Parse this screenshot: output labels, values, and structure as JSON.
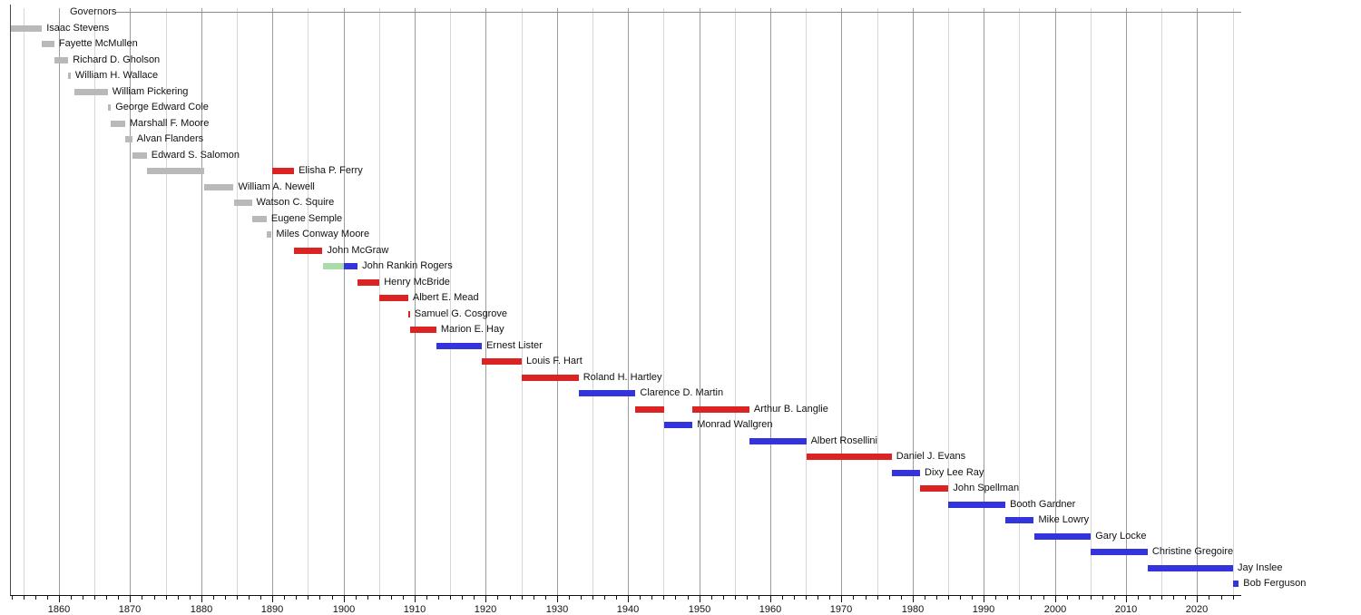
{
  "chart_data": {
    "type": "timeline",
    "title": "Governors",
    "x_axis": {
      "start": 1853.1,
      "end": 2026.3,
      "tick_labels": [
        "1860",
        "1870",
        "1880",
        "1890",
        "1900",
        "1910",
        "1920",
        "1930",
        "1940",
        "1950",
        "1960",
        "1970",
        "1980",
        "1990",
        "2000",
        "2010",
        "2020"
      ],
      "tick_years": [
        1860,
        1870,
        1880,
        1890,
        1900,
        1910,
        1920,
        1930,
        1940,
        1950,
        1960,
        1970,
        1980,
        1990,
        2000,
        2010,
        2020
      ],
      "minor_tick_interval_years": 1.6667,
      "gridline_interval_years": 5,
      "grid": "on"
    },
    "colors": {
      "gray": "#b9b9b9",
      "red": "#dc2323",
      "blue": "#3434dd",
      "green": "#aadcaa",
      "grid_minor": "#d6d6d6",
      "grid_major": "#9c9c9c",
      "axis": "#111111"
    },
    "governors": [
      {
        "name": "Isaac Stevens",
        "terms": [
          {
            "start": 1853.2,
            "end": 1857.6,
            "color": "gray"
          }
        ]
      },
      {
        "name": "Fayette McMullen",
        "terms": [
          {
            "start": 1857.6,
            "end": 1859.35,
            "color": "gray"
          }
        ]
      },
      {
        "name": "Richard D. Gholson",
        "terms": [
          {
            "start": 1859.35,
            "end": 1861.3,
            "color": "gray"
          }
        ]
      },
      {
        "name": "William H. Wallace",
        "terms": [
          {
            "start": 1861.3,
            "end": 1861.65,
            "color": "gray"
          }
        ]
      },
      {
        "name": "William Pickering",
        "terms": [
          {
            "start": 1862.1,
            "end": 1866.85,
            "color": "gray"
          }
        ]
      },
      {
        "name": "George Edward Cole",
        "terms": [
          {
            "start": 1866.85,
            "end": 1867.3,
            "color": "gray"
          }
        ]
      },
      {
        "name": "Marshall F. Moore",
        "terms": [
          {
            "start": 1867.3,
            "end": 1869.3,
            "color": "gray"
          }
        ]
      },
      {
        "name": "Alvan Flanders",
        "terms": [
          {
            "start": 1869.3,
            "end": 1870.3,
            "color": "gray"
          }
        ]
      },
      {
        "name": "Edward S. Salomon",
        "terms": [
          {
            "start": 1870.3,
            "end": 1872.35,
            "color": "gray"
          }
        ]
      },
      {
        "name": "Elisha P. Ferry",
        "terms": [
          {
            "start": 1872.35,
            "end": 1880.45,
            "color": "gray"
          },
          {
            "start": 1889.95,
            "end": 1893.05,
            "color": "red"
          }
        ]
      },
      {
        "name": "William A. Newell",
        "terms": [
          {
            "start": 1880.45,
            "end": 1884.55,
            "color": "gray"
          }
        ]
      },
      {
        "name": "Watson C. Squire",
        "terms": [
          {
            "start": 1884.55,
            "end": 1887.1,
            "color": "gray"
          }
        ]
      },
      {
        "name": "Eugene Semple",
        "terms": [
          {
            "start": 1887.1,
            "end": 1889.2,
            "color": "gray"
          }
        ]
      },
      {
        "name": "Miles Conway Moore",
        "terms": [
          {
            "start": 1889.2,
            "end": 1889.9,
            "color": "gray"
          }
        ]
      },
      {
        "name": "John McGraw",
        "terms": [
          {
            "start": 1893.05,
            "end": 1897.05,
            "color": "red"
          }
        ]
      },
      {
        "name": "John Rankin Rogers",
        "terms": [
          {
            "start": 1897.05,
            "end": 1900.0,
            "color": "green"
          },
          {
            "start": 1900.0,
            "end": 1901.98,
            "color": "blue"
          }
        ]
      },
      {
        "name": "Henry McBride",
        "terms": [
          {
            "start": 1901.98,
            "end": 1905.05,
            "color": "red"
          }
        ]
      },
      {
        "name": "Albert E. Mead",
        "terms": [
          {
            "start": 1905.05,
            "end": 1909.1,
            "color": "red"
          }
        ]
      },
      {
        "name": "Samuel G. Cosgrove",
        "terms": [
          {
            "start": 1909.1,
            "end": 1909.35,
            "color": "red"
          }
        ]
      },
      {
        "name": "Marion E. Hay",
        "terms": [
          {
            "start": 1909.35,
            "end": 1913.05,
            "color": "red"
          }
        ]
      },
      {
        "name": "Ernest Lister",
        "terms": [
          {
            "start": 1913.05,
            "end": 1919.45,
            "color": "blue"
          }
        ]
      },
      {
        "name": "Louis F. Hart",
        "terms": [
          {
            "start": 1919.45,
            "end": 1925.05,
            "color": "red"
          }
        ]
      },
      {
        "name": "Roland H. Hartley",
        "terms": [
          {
            "start": 1925.05,
            "end": 1933.05,
            "color": "red"
          }
        ]
      },
      {
        "name": "Clarence D. Martin",
        "terms": [
          {
            "start": 1933.05,
            "end": 1941.05,
            "color": "blue"
          }
        ]
      },
      {
        "name": "Arthur B. Langlie",
        "terms": [
          {
            "start": 1941.05,
            "end": 1945.05,
            "color": "red"
          },
          {
            "start": 1949.05,
            "end": 1957.05,
            "color": "red"
          }
        ]
      },
      {
        "name": "Monrad Wallgren",
        "terms": [
          {
            "start": 1945.05,
            "end": 1949.05,
            "color": "blue"
          }
        ]
      },
      {
        "name": "Albert Rosellini",
        "terms": [
          {
            "start": 1957.05,
            "end": 1965.05,
            "color": "blue"
          }
        ]
      },
      {
        "name": "Daniel J. Evans",
        "terms": [
          {
            "start": 1965.05,
            "end": 1977.05,
            "color": "red"
          }
        ]
      },
      {
        "name": "Dixy Lee Ray",
        "terms": [
          {
            "start": 1977.05,
            "end": 1981.05,
            "color": "blue"
          }
        ]
      },
      {
        "name": "John Spellman",
        "terms": [
          {
            "start": 1981.05,
            "end": 1985.05,
            "color": "red"
          }
        ]
      },
      {
        "name": "Booth Gardner",
        "terms": [
          {
            "start": 1985.05,
            "end": 1993.05,
            "color": "blue"
          }
        ]
      },
      {
        "name": "Mike Lowry",
        "terms": [
          {
            "start": 1993.05,
            "end": 1997.05,
            "color": "blue"
          }
        ]
      },
      {
        "name": "Gary Locke",
        "terms": [
          {
            "start": 1997.05,
            "end": 2005.05,
            "color": "blue"
          }
        ]
      },
      {
        "name": "Christine Gregoire",
        "terms": [
          {
            "start": 2005.05,
            "end": 2013.05,
            "color": "blue"
          }
        ]
      },
      {
        "name": "Jay Inslee",
        "terms": [
          {
            "start": 2013.05,
            "end": 2025.05,
            "color": "blue"
          }
        ]
      },
      {
        "name": "Bob Ferguson",
        "terms": [
          {
            "start": 2025.05,
            "end": 2025.85,
            "color": "blue"
          }
        ]
      }
    ]
  }
}
